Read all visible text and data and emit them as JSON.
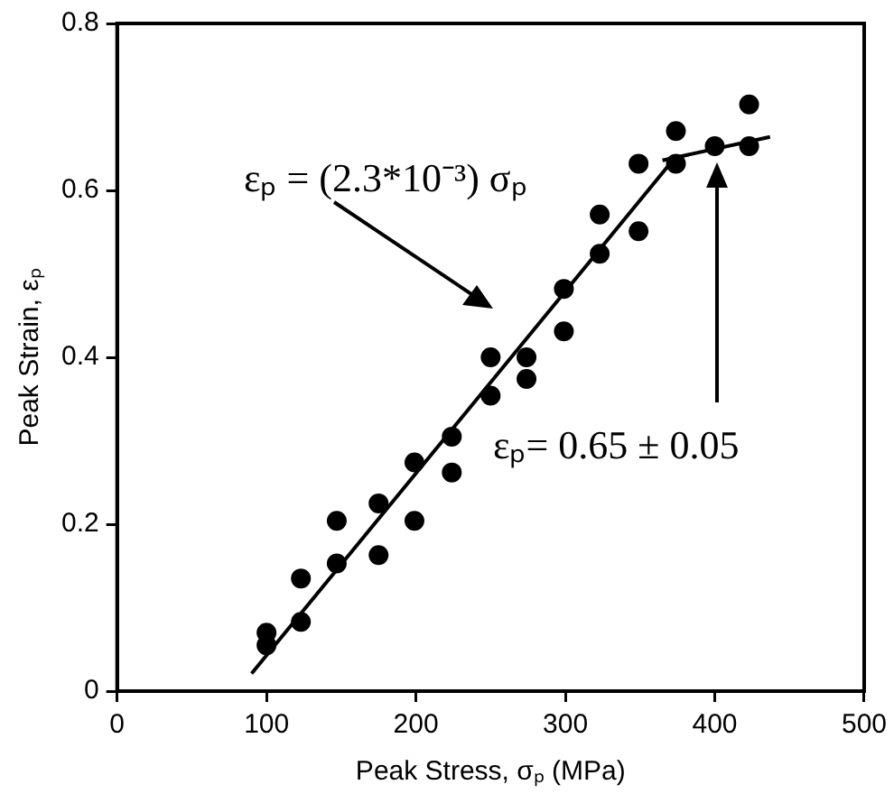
{
  "chart_data": {
    "type": "scatter",
    "xlabel": "Peak Stress, σₚ (MPa)",
    "ylabel": "Peak Strain, εₚ",
    "xlim": [
      0,
      500
    ],
    "xticks": [
      0,
      100,
      200,
      300,
      400,
      500
    ],
    "ylim": [
      0,
      0.8
    ],
    "yticks": [
      0,
      0.2,
      0.4,
      0.6,
      0.8
    ],
    "grid": false,
    "marker": "circle",
    "series": [
      {
        "type": "scatter",
        "color": "#000000",
        "x": [
          100,
          100,
          123,
          123,
          147,
          147,
          175,
          175,
          199,
          199,
          224,
          224,
          250,
          250,
          274,
          274,
          299,
          299,
          323,
          323,
          349,
          349,
          374,
          374,
          400,
          423,
          423
        ],
        "values": [
          0.07,
          0.055,
          0.135,
          0.083,
          0.204,
          0.153,
          0.225,
          0.163,
          0.274,
          0.204,
          0.305,
          0.262,
          0.4,
          0.354,
          0.4,
          0.374,
          0.482,
          0.431,
          0.571,
          0.524,
          0.632,
          0.551,
          0.671,
          0.632,
          0.653,
          0.703,
          0.653
        ]
      },
      {
        "type": "line",
        "color": "#000000",
        "marker": "none",
        "x": [
          90,
          371
        ],
        "values": [
          0.021,
          0.634
        ]
      },
      {
        "type": "line",
        "color": "#000000",
        "marker": "none",
        "x": [
          365,
          437
        ],
        "values": [
          0.636,
          0.664
        ]
      }
    ],
    "annotations": [
      "εₚ = (2.3*10⁻³) σₚ",
      "εₚ= 0.65 ± 0.05"
    ]
  }
}
